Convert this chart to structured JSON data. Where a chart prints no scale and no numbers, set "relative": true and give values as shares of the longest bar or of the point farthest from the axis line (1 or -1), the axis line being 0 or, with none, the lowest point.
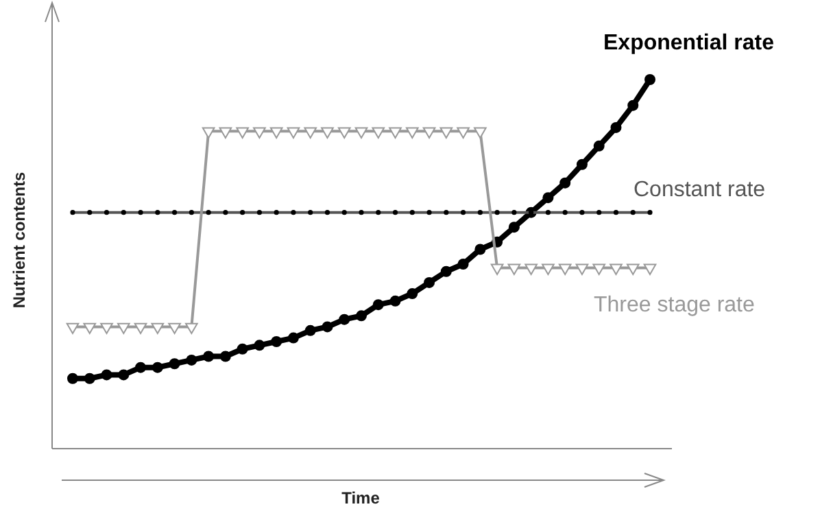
{
  "chart_data": {
    "type": "line",
    "xlabel": "Time",
    "ylabel": "Nutrient contents",
    "relative": true,
    "legend": false,
    "categories": [
      null,
      null,
      null,
      null,
      null,
      null,
      null,
      null,
      null,
      null,
      null,
      null,
      null,
      null,
      null,
      null,
      null,
      null,
      null,
      null,
      null,
      null,
      null,
      null,
      null,
      null,
      null,
      null,
      null,
      null,
      null,
      null,
      null,
      null,
      null
    ],
    "series": [
      {
        "name": "Exponential rate",
        "color": "#000000",
        "marker": "circle",
        "values": [
          0.19,
          0.19,
          0.2,
          0.2,
          0.22,
          0.22,
          0.23,
          0.24,
          0.25,
          0.25,
          0.27,
          0.28,
          0.29,
          0.3,
          0.32,
          0.33,
          0.35,
          0.36,
          0.39,
          0.4,
          0.42,
          0.45,
          0.48,
          0.5,
          0.54,
          0.56,
          0.6,
          0.64,
          0.68,
          0.72,
          0.77,
          0.82,
          0.87,
          0.93,
          1
        ]
      },
      {
        "name": "Constant rate",
        "color": "#555555",
        "marker": "circle",
        "values": [
          0.64,
          0.64,
          0.64,
          0.64,
          0.64,
          0.64,
          0.64,
          0.64,
          0.64,
          0.64,
          0.64,
          0.64,
          0.64,
          0.64,
          0.64,
          0.64,
          0.64,
          0.64,
          0.64,
          0.64,
          0.64,
          0.64,
          0.64,
          0.64,
          0.64,
          0.64,
          0.64,
          0.64,
          0.64,
          0.64,
          0.64,
          0.64,
          0.64,
          0.64,
          0.64
        ]
      },
      {
        "name": "Three stage rate",
        "color": "#999999",
        "marker": "triangle",
        "values": [
          0.33,
          0.33,
          0.33,
          0.33,
          0.33,
          0.33,
          0.33,
          0.33,
          0.86,
          0.86,
          0.86,
          0.86,
          0.86,
          0.86,
          0.86,
          0.86,
          0.86,
          0.86,
          0.86,
          0.86,
          0.86,
          0.86,
          0.86,
          0.86,
          0.86,
          0.49,
          0.49,
          0.49,
          0.49,
          0.49,
          0.49,
          0.49,
          0.49,
          0.49,
          0.49
        ]
      }
    ]
  }
}
